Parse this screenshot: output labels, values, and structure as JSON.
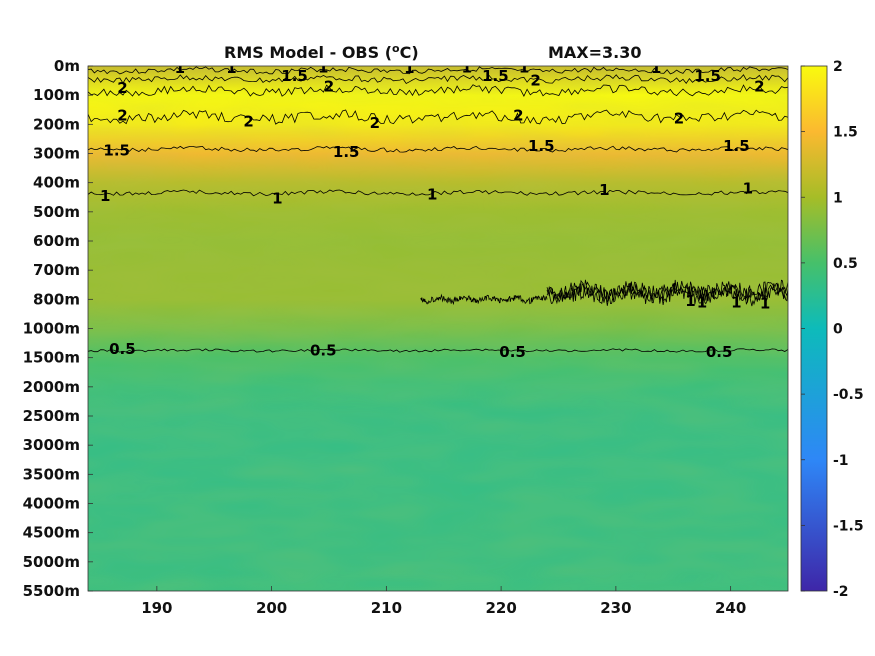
{
  "chart_data": {
    "type": "heatmap",
    "title": "RMS Model - OBS (",
    "title_unit_sup": "o",
    "title_unit_end": "C)",
    "max_label": "MAX=3.30",
    "x_ticks": [
      190,
      200,
      210,
      220,
      230,
      240
    ],
    "x_range": [
      184,
      245
    ],
    "y_ticks": [
      "0m",
      "100m",
      "200m",
      "300m",
      "400m",
      "500m",
      "600m",
      "700m",
      "800m",
      "1000m",
      "1500m",
      "2000m",
      "2500m",
      "3000m",
      "3500m",
      "4000m",
      "4500m",
      "5000m",
      "5500m"
    ],
    "colorbar": {
      "range": [
        -2,
        2
      ],
      "ticks": [
        "2",
        "1.5",
        "1",
        "0.5",
        "0",
        "-0.5",
        "-1",
        "-1.5",
        "-2"
      ],
      "colors": {
        "c_m2": "#3e26a8",
        "c_m1": "#2e87f7",
        "c_0": "#0dbbba",
        "c_05": "#46c06a",
        "c_1": "#a6bd27",
        "c_15": "#fbb930",
        "c_2": "#f9fb0e"
      }
    },
    "depth_profile": [
      {
        "depth": "0m",
        "value": 1.2
      },
      {
        "depth": "100m",
        "value": 2.0
      },
      {
        "depth": "200m",
        "value": 1.9
      },
      {
        "depth": "300m",
        "value": 1.45
      },
      {
        "depth": "400m",
        "value": 1.1
      },
      {
        "depth": "500m",
        "value": 0.95
      },
      {
        "depth": "600m",
        "value": 0.9
      },
      {
        "depth": "700m",
        "value": 0.92
      },
      {
        "depth": "800m",
        "value": 0.92
      },
      {
        "depth": "1000m",
        "value": 0.75
      },
      {
        "depth": "1500m",
        "value": 0.5
      },
      {
        "depth": "2000m",
        "value": 0.38
      },
      {
        "depth": "2500m",
        "value": 0.33
      },
      {
        "depth": "3000m",
        "value": 0.32
      },
      {
        "depth": "3500m",
        "value": 0.32
      },
      {
        "depth": "4000m",
        "value": 0.33
      },
      {
        "depth": "4500m",
        "value": 0.34
      },
      {
        "depth": "5000m",
        "value": 0.34
      },
      {
        "depth": "5500m",
        "value": 0.35
      }
    ],
    "contour_labels": [
      {
        "text": "1",
        "x": 192,
        "y": 0.07
      },
      {
        "text": "1",
        "x": 196.5,
        "y": 0.06
      },
      {
        "text": "1.5",
        "x": 202,
        "y": 0.35
      },
      {
        "text": "1",
        "x": 204.5,
        "y": 0.05
      },
      {
        "text": "1",
        "x": 212,
        "y": 0.06
      },
      {
        "text": "1",
        "x": 217,
        "y": 0.05
      },
      {
        "text": "1.5",
        "x": 219.5,
        "y": 0.35
      },
      {
        "text": "1",
        "x": 222,
        "y": 0.05
      },
      {
        "text": "1",
        "x": 233.5,
        "y": 0.06
      },
      {
        "text": "1.5",
        "x": 238,
        "y": 0.35
      },
      {
        "text": "2",
        "x": 187,
        "y": 0.75
      },
      {
        "text": "2",
        "x": 205,
        "y": 0.7
      },
      {
        "text": "2",
        "x": 223,
        "y": 0.5
      },
      {
        "text": "2",
        "x": 242.5,
        "y": 0.7
      },
      {
        "text": "2",
        "x": 187,
        "y": 1.7
      },
      {
        "text": "2",
        "x": 198,
        "y": 1.9
      },
      {
        "text": "2",
        "x": 209,
        "y": 1.95
      },
      {
        "text": "2",
        "x": 221.5,
        "y": 1.7
      },
      {
        "text": "2",
        "x": 235.5,
        "y": 1.8
      },
      {
        "text": "1.5",
        "x": 186.5,
        "y": 2.9
      },
      {
        "text": "1.5",
        "x": 206.5,
        "y": 2.95
      },
      {
        "text": "1.5",
        "x": 223.5,
        "y": 2.75
      },
      {
        "text": "1.5",
        "x": 240.5,
        "y": 2.75
      },
      {
        "text": "1",
        "x": 185.5,
        "y": 4.45
      },
      {
        "text": "1",
        "x": 200.5,
        "y": 4.55
      },
      {
        "text": "1",
        "x": 214,
        "y": 4.4
      },
      {
        "text": "1",
        "x": 229,
        "y": 4.25
      },
      {
        "text": "1",
        "x": 241.5,
        "y": 4.2
      },
      {
        "text": "1",
        "x": 236.5,
        "y": 8.05
      },
      {
        "text": "1",
        "x": 237.5,
        "y": 8.1
      },
      {
        "text": "1",
        "x": 240.5,
        "y": 8.1
      },
      {
        "text": "1",
        "x": 243,
        "y": 8.15
      },
      {
        "text": "0.5",
        "x": 187,
        "y": 9.7
      },
      {
        "text": "0.5",
        "x": 204.5,
        "y": 9.75
      },
      {
        "text": "0.5",
        "x": 221,
        "y": 9.8
      },
      {
        "text": "0.5",
        "x": 239,
        "y": 9.8
      }
    ]
  }
}
